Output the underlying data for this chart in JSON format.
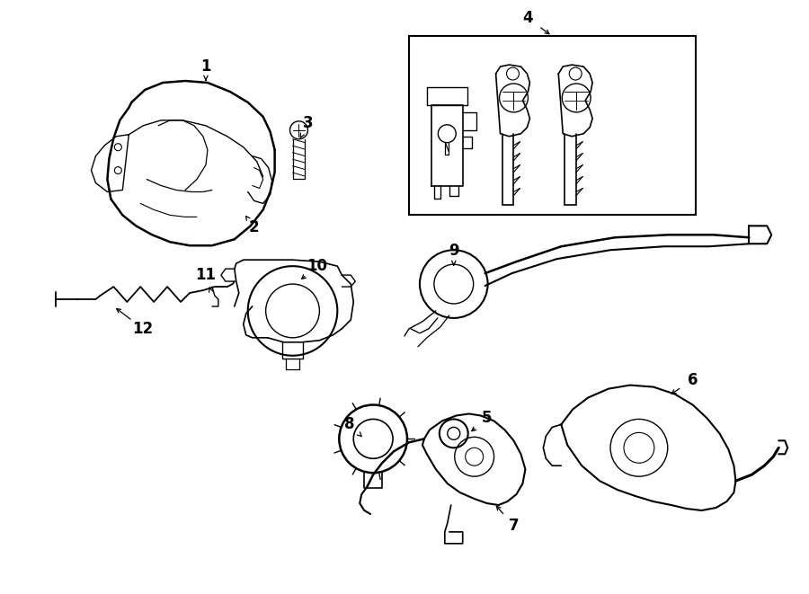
{
  "bg_color": "#ffffff",
  "line_color": "#000000",
  "fig_width": 9.0,
  "fig_height": 6.61,
  "dpi": 100,
  "shroud_outer_x": [
    1.55,
    1.7,
    1.9,
    2.15,
    2.45,
    2.75,
    2.95,
    3.1,
    3.12,
    3.05,
    2.9,
    2.65,
    2.4,
    2.1,
    1.85,
    1.65,
    1.45,
    1.3,
    1.2,
    1.18,
    1.2,
    1.3,
    1.45,
    1.55
  ],
  "shroud_outer_y": [
    5.5,
    5.62,
    5.7,
    5.72,
    5.68,
    5.55,
    5.4,
    5.2,
    4.98,
    4.75,
    4.52,
    4.3,
    4.12,
    3.98,
    3.88,
    3.85,
    3.88,
    3.95,
    4.08,
    4.3,
    4.55,
    4.85,
    5.2,
    5.5
  ],
  "label_font_size": 12
}
